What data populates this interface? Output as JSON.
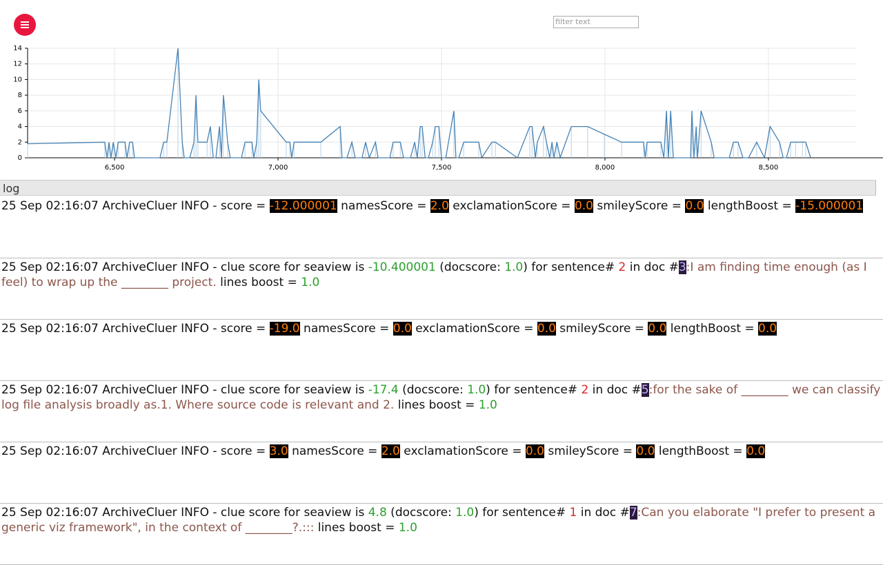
{
  "header": {
    "filter_placeholder": "filter text"
  },
  "chart_data": {
    "type": "line",
    "color": "#4682b4",
    "grid": true,
    "x": [
      6234,
      6470,
      6477,
      6483,
      6489,
      6496,
      6504,
      6511,
      6532,
      6538,
      6546,
      6555,
      6561,
      6639,
      6650,
      6660,
      6694,
      6707,
      6713,
      6719,
      6730,
      6743,
      6749,
      6755,
      6783,
      6793,
      6802,
      6810,
      6821,
      6827,
      6833,
      6846,
      6854,
      6888,
      6899,
      6920,
      6926,
      6935,
      6941,
      6947,
      7025,
      7036,
      7042,
      7049,
      7131,
      7190,
      7196,
      7211,
      7226,
      7236,
      7257,
      7268,
      7279,
      7298,
      7306,
      7342,
      7352,
      7374,
      7384,
      7405,
      7418,
      7426,
      7435,
      7441,
      7450,
      7460,
      7473,
      7481,
      7492,
      7500,
      7513,
      7538,
      7544,
      7553,
      7568,
      7614,
      7623,
      7654,
      7665,
      7732,
      7770,
      7777,
      7787,
      7793,
      7812,
      7821,
      7831,
      7838,
      7844,
      7853,
      7863,
      7897,
      7947,
      7998,
      8051,
      8118,
      8123,
      8129,
      8171,
      8180,
      8188,
      8194,
      8201,
      8209,
      8262,
      8266,
      8272,
      8279,
      8283,
      8294,
      8325,
      8334,
      8380,
      8393,
      8407,
      8422,
      8439,
      8464,
      8488,
      8505,
      8534,
      8545,
      8555,
      8568,
      8583,
      8604,
      8614,
      8629
    ],
    "values": [
      1.8,
      2,
      0,
      2,
      0,
      2,
      0,
      2,
      2,
      0,
      2,
      2,
      0,
      0,
      2,
      2,
      14,
      2,
      0,
      0,
      0,
      2,
      8,
      2,
      2,
      4,
      0,
      0,
      4,
      0,
      8,
      2,
      0,
      0,
      2,
      2,
      0,
      2,
      10,
      6,
      2,
      2,
      0,
      2,
      2,
      4,
      0,
      0,
      2,
      0,
      0,
      2,
      0,
      2,
      0,
      0,
      2,
      2,
      0,
      0,
      2,
      0,
      4,
      4,
      0,
      0,
      2,
      4,
      4,
      0,
      0,
      6,
      0,
      0,
      2,
      2,
      0,
      2,
      2,
      0,
      4,
      4,
      0,
      2,
      4,
      2,
      0,
      2,
      0,
      2,
      0,
      4,
      4,
      3,
      2,
      2,
      0,
      2,
      2,
      0,
      6,
      0,
      6,
      0,
      0,
      6,
      0,
      4,
      0,
      6,
      2,
      0,
      0,
      2,
      2,
      0,
      0,
      2,
      0,
      4,
      2,
      0,
      0,
      2,
      2,
      2,
      2,
      0
    ],
    "xlim": [
      6234,
      8766
    ],
    "ylim": [
      0,
      14
    ],
    "xticks": [
      {
        "value": 6500,
        "label": "6,500"
      },
      {
        "value": 7000,
        "label": "7,000"
      },
      {
        "value": 7500,
        "label": "7,500"
      },
      {
        "value": 8000,
        "label": "8,000"
      },
      {
        "value": 8500,
        "label": "8,500"
      }
    ],
    "yticks": [
      0,
      2,
      4,
      6,
      8,
      10,
      12,
      14
    ]
  },
  "log": {
    "title": "log",
    "entries": [
      {
        "parts": [
          {
            "text": "25 Sep 02:16:07 ArchiveCluer INFO - score = "
          },
          {
            "text": "-12.000001",
            "color": "#ff7f0e",
            "background": "#000000"
          },
          {
            "text": " namesScore = "
          },
          {
            "text": "2.0",
            "color": "#ff7f0e",
            "background": "#000000"
          },
          {
            "text": " exclamationScore = "
          },
          {
            "text": "0.0",
            "color": "#ff7f0e",
            "background": "#000000"
          },
          {
            "text": " smileyScore = "
          },
          {
            "text": "0.0",
            "color": "#ff7f0e",
            "background": "#000000"
          },
          {
            "text": " lengthBoost = "
          },
          {
            "text": "-15.000001",
            "color": "#ff7f0e",
            "background": "#000000"
          }
        ]
      },
      {
        "parts": [
          {
            "text": "25 Sep 02:16:07 ArchiveCluer INFO - clue score for seaview is "
          },
          {
            "text": "-10.400001",
            "color": "#2ca02c"
          },
          {
            "text": " (docscore: "
          },
          {
            "text": "1.0",
            "color": "#2ca02c"
          },
          {
            "text": ") for sentence# "
          },
          {
            "text": "2",
            "color": "#d62728"
          },
          {
            "text": " in doc #"
          },
          {
            "text": "3",
            "color": "#c5b0ff",
            "background": "#2a1b3d"
          },
          {
            "text": ":I am finding time enough (as I feel) to wrap up the ________ project.",
            "color": "#8c564b"
          },
          {
            "text": " lines boost = "
          },
          {
            "text": "1.0",
            "color": "#2ca02c"
          }
        ]
      },
      {
        "parts": [
          {
            "text": "25 Sep 02:16:07 ArchiveCluer INFO - score = "
          },
          {
            "text": "-19.0",
            "color": "#ff7f0e",
            "background": "#000000"
          },
          {
            "text": " namesScore = "
          },
          {
            "text": "0.0",
            "color": "#ff7f0e",
            "background": "#000000"
          },
          {
            "text": " exclamationScore = "
          },
          {
            "text": "0.0",
            "color": "#ff7f0e",
            "background": "#000000"
          },
          {
            "text": " smileyScore = "
          },
          {
            "text": "0.0",
            "color": "#ff7f0e",
            "background": "#000000"
          },
          {
            "text": " lengthBoost = "
          },
          {
            "text": "0.0",
            "color": "#ff7f0e",
            "background": "#000000"
          }
        ]
      },
      {
        "parts": [
          {
            "text": "25 Sep 02:16:07 ArchiveCluer INFO - clue score for seaview is "
          },
          {
            "text": "-17.4",
            "color": "#2ca02c"
          },
          {
            "text": " (docscore: "
          },
          {
            "text": "1.0",
            "color": "#2ca02c"
          },
          {
            "text": ") for sentence# "
          },
          {
            "text": "2",
            "color": "#d62728"
          },
          {
            "text": " in doc #"
          },
          {
            "text": "5",
            "color": "#c5b0ff",
            "background": "#2a1b3d"
          },
          {
            "text": ":for the sake of ________ we can classify log file analysis broadly as.1. Where source code is relevant and 2.",
            "color": "#8c564b"
          },
          {
            "text": " lines boost = "
          },
          {
            "text": "1.0",
            "color": "#2ca02c"
          }
        ]
      },
      {
        "parts": [
          {
            "text": "25 Sep 02:16:07 ArchiveCluer INFO - score = "
          },
          {
            "text": "3.0",
            "color": "#ff7f0e",
            "background": "#000000"
          },
          {
            "text": " namesScore = "
          },
          {
            "text": "2.0",
            "color": "#ff7f0e",
            "background": "#000000"
          },
          {
            "text": " exclamationScore = "
          },
          {
            "text": "0.0",
            "color": "#ff7f0e",
            "background": "#000000"
          },
          {
            "text": " smileyScore = "
          },
          {
            "text": "0.0",
            "color": "#ff7f0e",
            "background": "#000000"
          },
          {
            "text": " lengthBoost = "
          },
          {
            "text": "0.0",
            "color": "#ff7f0e",
            "background": "#000000"
          }
        ]
      },
      {
        "parts": [
          {
            "text": "25 Sep 02:16:07 ArchiveCluer INFO - clue score for seaview is "
          },
          {
            "text": "4.8",
            "color": "#2ca02c"
          },
          {
            "text": " (docscore: "
          },
          {
            "text": "1.0",
            "color": "#2ca02c"
          },
          {
            "text": ") for sentence# "
          },
          {
            "text": "1",
            "color": "#d62728"
          },
          {
            "text": " in doc #"
          },
          {
            "text": "7",
            "color": "#c5b0ff",
            "background": "#2a1b3d"
          },
          {
            "text": ":Can you elaborate \"I prefer to present a generic viz framework\", in the context of ________?.:::",
            "color": "#8c564b"
          },
          {
            "text": " lines boost = "
          },
          {
            "text": "1.0",
            "color": "#2ca02c"
          }
        ]
      }
    ]
  }
}
